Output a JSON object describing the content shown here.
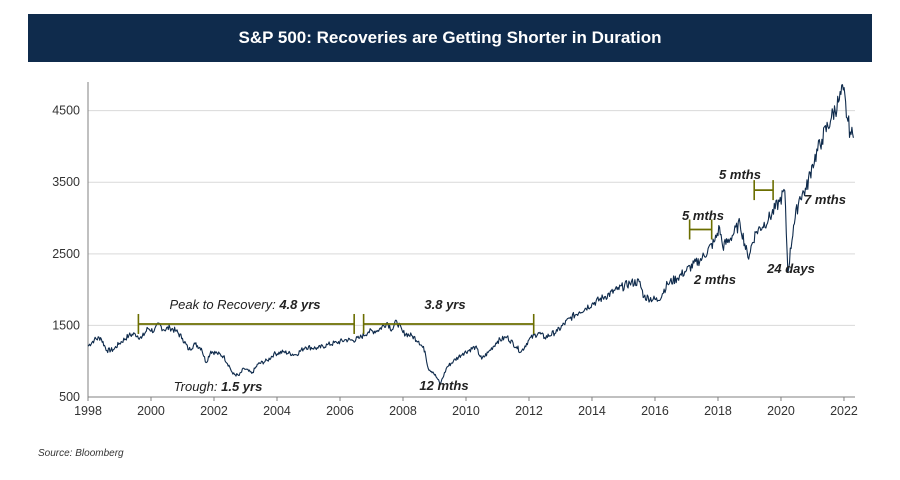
{
  "chart_data": {
    "type": "line",
    "title": "S&P 500: Recoveries are Getting Shorter in Duration",
    "source": "Source: Bloomberg",
    "xlim": [
      1998,
      2022.35
    ],
    "ylim": [
      500,
      4900
    ],
    "y_ticks": [
      500,
      1500,
      2500,
      3500,
      4500
    ],
    "x_ticks": [
      1998,
      2000,
      2002,
      2004,
      2006,
      2008,
      2010,
      2012,
      2014,
      2016,
      2018,
      2020,
      2022
    ],
    "colors": {
      "line": "#0f2b4c",
      "bracket": "#6b6e00",
      "grid": "#d9d9d9",
      "axis": "#808080"
    },
    "series": [
      {
        "name": "S&P 500",
        "points": [
          [
            1998.0,
            1210
          ],
          [
            1998.2,
            1300
          ],
          [
            1998.4,
            1330
          ],
          [
            1998.6,
            1150
          ],
          [
            1998.8,
            1160
          ],
          [
            1999.0,
            1250
          ],
          [
            1999.3,
            1360
          ],
          [
            1999.5,
            1380
          ],
          [
            1999.7,
            1320
          ],
          [
            1999.9,
            1460
          ],
          [
            2000.1,
            1420
          ],
          [
            2000.25,
            1520
          ],
          [
            2000.4,
            1440
          ],
          [
            2000.6,
            1470
          ],
          [
            2000.8,
            1420
          ],
          [
            2001.0,
            1320
          ],
          [
            2001.2,
            1160
          ],
          [
            2001.4,
            1240
          ],
          [
            2001.6,
            1180
          ],
          [
            2001.75,
            980
          ],
          [
            2001.9,
            1140
          ],
          [
            2002.1,
            1110
          ],
          [
            2002.3,
            1070
          ],
          [
            2002.5,
            920
          ],
          [
            2002.6,
            820
          ],
          [
            2002.8,
            800
          ],
          [
            2002.95,
            900
          ],
          [
            2003.2,
            830
          ],
          [
            2003.4,
            960
          ],
          [
            2003.7,
            1010
          ],
          [
            2003.9,
            1100
          ],
          [
            2004.2,
            1130
          ],
          [
            2004.6,
            1090
          ],
          [
            2004.9,
            1200
          ],
          [
            2005.3,
            1180
          ],
          [
            2005.6,
            1230
          ],
          [
            2005.9,
            1260
          ],
          [
            2006.2,
            1300
          ],
          [
            2006.4,
            1290
          ],
          [
            2006.6,
            1320
          ],
          [
            2006.9,
            1410
          ],
          [
            2007.2,
            1430
          ],
          [
            2007.5,
            1540
          ],
          [
            2007.65,
            1440
          ],
          [
            2007.8,
            1560
          ],
          [
            2008.0,
            1400
          ],
          [
            2008.3,
            1350
          ],
          [
            2008.5,
            1280
          ],
          [
            2008.7,
            1140
          ],
          [
            2008.8,
            900
          ],
          [
            2008.95,
            850
          ],
          [
            2009.1,
            750
          ],
          [
            2009.18,
            680
          ],
          [
            2009.4,
            920
          ],
          [
            2009.6,
            1000
          ],
          [
            2009.9,
            1110
          ],
          [
            2010.3,
            1200
          ],
          [
            2010.5,
            1030
          ],
          [
            2010.7,
            1120
          ],
          [
            2011.0,
            1280
          ],
          [
            2011.3,
            1340
          ],
          [
            2011.6,
            1200
          ],
          [
            2011.75,
            1130
          ],
          [
            2012.0,
            1300
          ],
          [
            2012.3,
            1400
          ],
          [
            2012.5,
            1330
          ],
          [
            2012.9,
            1420
          ],
          [
            2013.3,
            1600
          ],
          [
            2013.6,
            1690
          ],
          [
            2014.0,
            1800
          ],
          [
            2014.4,
            1900
          ],
          [
            2014.8,
            2000
          ],
          [
            2015.2,
            2090
          ],
          [
            2015.5,
            2110
          ],
          [
            2015.65,
            1900
          ],
          [
            2016.1,
            1850
          ],
          [
            2016.4,
            2080
          ],
          [
            2016.7,
            2160
          ],
          [
            2017.0,
            2270
          ],
          [
            2017.5,
            2440
          ],
          [
            2017.9,
            2680
          ],
          [
            2018.05,
            2870
          ],
          [
            2018.15,
            2600
          ],
          [
            2018.4,
            2720
          ],
          [
            2018.7,
            2930
          ],
          [
            2018.95,
            2450
          ],
          [
            2019.2,
            2800
          ],
          [
            2019.6,
            2980
          ],
          [
            2019.95,
            3230
          ],
          [
            2020.12,
            3380
          ],
          [
            2020.22,
            2240
          ],
          [
            2020.4,
            2900
          ],
          [
            2020.6,
            3300
          ],
          [
            2020.8,
            3400
          ],
          [
            2021.0,
            3750
          ],
          [
            2021.3,
            4100
          ],
          [
            2021.6,
            4400
          ],
          [
            2021.85,
            4650
          ],
          [
            2021.98,
            4790
          ],
          [
            2022.1,
            4400
          ],
          [
            2022.2,
            4200
          ],
          [
            2022.3,
            4120
          ]
        ]
      }
    ],
    "annotations": [
      {
        "type": "span",
        "x1": 1999.6,
        "x2": 2006.45,
        "y": 1520,
        "label_prefix": "Peak to Recovery: ",
        "label_value": "4.8 yrs"
      },
      {
        "type": "span",
        "x1": 2006.75,
        "x2": 2012.15,
        "y": 1520,
        "label_prefix": "",
        "label_value": "3.8 yrs"
      },
      {
        "type": "span",
        "x1": 2017.1,
        "x2": 2017.8,
        "y": 2840,
        "label_prefix": "",
        "label_value": "5 mths"
      },
      {
        "type": "span",
        "x1": 2019.15,
        "x2": 2019.75,
        "y": 3390,
        "label_prefix": "",
        "label_value": "5 mths"
      },
      {
        "type": "label",
        "label_prefix": "Trough: ",
        "label_value": "1.5 yrs"
      },
      {
        "type": "label",
        "label_prefix": "",
        "label_value": "12 mths"
      },
      {
        "type": "label",
        "label_prefix": "",
        "label_value": "2 mths"
      },
      {
        "type": "label",
        "label_prefix": "",
        "label_value": "24 days"
      },
      {
        "type": "label",
        "label_prefix": "",
        "label_value": "7 mths"
      }
    ]
  }
}
